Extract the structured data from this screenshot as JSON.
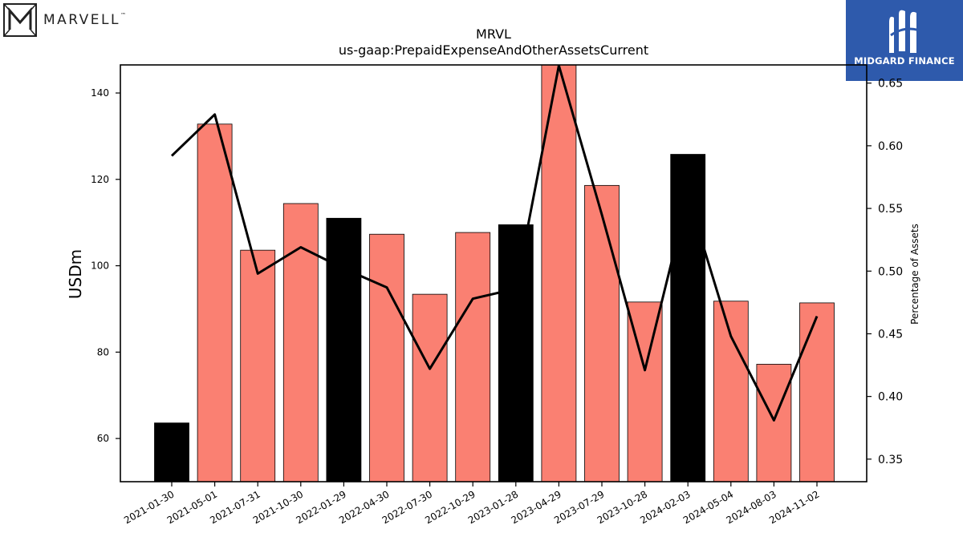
{
  "brand": {
    "left_logo_text": "MARVELL",
    "left_logo_mark": "™",
    "right_logo_text": "MIDGARD FINANCE"
  },
  "colors": {
    "bar_default": "#fa8072",
    "bar_highlight": "#000000",
    "line": "#000000",
    "brand_blue": "#2e5aac"
  },
  "chart_data": {
    "type": "bar",
    "title": "MRVL",
    "subtitle": "us-gaap:PrepaidExpenseAndOtherAssetsCurrent",
    "ylabel": "USDm",
    "y2label": "Percentage of Assets",
    "categories": [
      "2021-01-30",
      "2021-05-01",
      "2021-07-31",
      "2021-10-30",
      "2022-01-29",
      "2022-04-30",
      "2022-07-30",
      "2022-10-29",
      "2023-01-28",
      "2023-04-29",
      "2023-07-29",
      "2023-10-28",
      "2024-02-03",
      "2024-05-04",
      "2024-08-03",
      "2024-11-02"
    ],
    "series": [
      {
        "kind": "bar",
        "axis": "left",
        "values": [
          63.6,
          132.8,
          103.6,
          114.4,
          111.0,
          107.3,
          93.4,
          107.7,
          109.5,
          148.0,
          118.6,
          91.6,
          125.8,
          91.8,
          77.2,
          91.4
        ],
        "highlight": [
          true,
          false,
          false,
          false,
          true,
          false,
          false,
          false,
          true,
          false,
          false,
          false,
          true,
          false,
          false,
          false
        ]
      },
      {
        "kind": "line",
        "axis": "right",
        "values": [
          0.592,
          0.625,
          0.498,
          0.519,
          0.502,
          0.487,
          0.422,
          0.478,
          0.486,
          0.664,
          0.545,
          0.421,
          0.56,
          0.448,
          0.381,
          0.464
        ]
      }
    ],
    "ylim": [
      50,
      146.5
    ],
    "y_ticks": [
      60,
      80,
      100,
      120,
      140
    ],
    "y2lim": [
      0.332,
      0.6645
    ],
    "y2_ticks": [
      0.35,
      0.4,
      0.45,
      0.5,
      0.55,
      0.6,
      0.65
    ],
    "y2_tick_labels": [
      "0.35",
      "0.40",
      "0.45",
      "0.50",
      "0.55",
      "0.60",
      "0.65"
    ],
    "grid": false,
    "legend": "none"
  }
}
